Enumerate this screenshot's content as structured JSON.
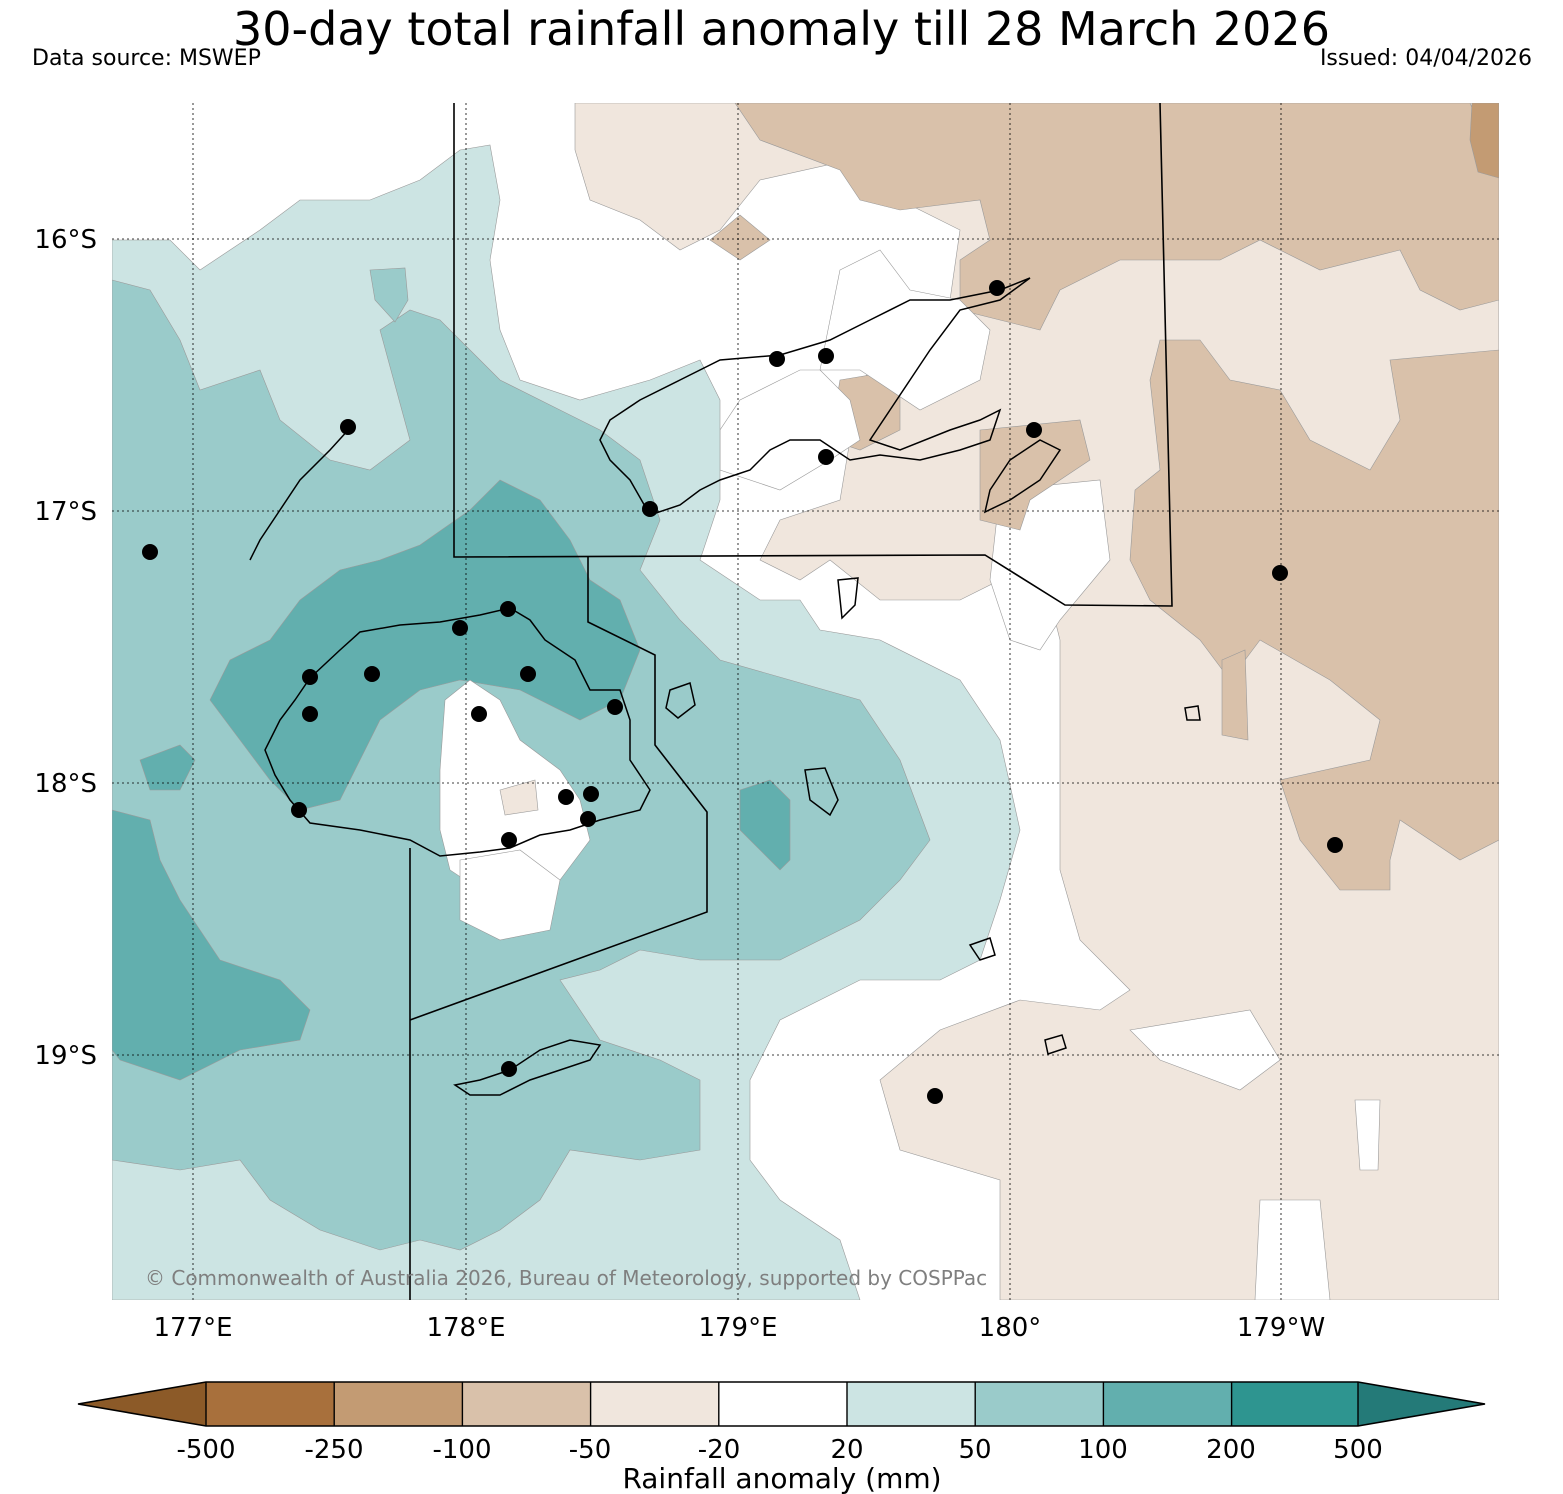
{
  "header": {
    "title": "30-day total rainfall anomaly till 28 March 2026",
    "data_source": "Data source: MSWEP",
    "issued": "Issued: 04/04/2026"
  },
  "map": {
    "lon_labels": [
      "177°E",
      "178°E",
      "179°E",
      "180°",
      "179°W"
    ],
    "lat_labels": [
      "16°S",
      "17°S",
      "18°S",
      "19°S"
    ],
    "copyright": "© Commonwealth of Australia 2026, Bureau of Meteorology, supported by COSPPac"
  },
  "colorbar": {
    "title": "Rainfall anomaly (mm)",
    "tick_labels": [
      "-500",
      "-250",
      "-100",
      "-50",
      "-20",
      "20",
      "50",
      "100",
      "200",
      "500"
    ],
    "low_extend_color": "#8c5a28",
    "high_extend_color": "#247a78",
    "bins": [
      {
        "range": "-500 to -250",
        "color": "#a8703c"
      },
      {
        "range": "-250 to -100",
        "color": "#c39b73"
      },
      {
        "range": "-100 to -50",
        "color": "#d9c1aa"
      },
      {
        "range": "-50 to -20",
        "color": "#f0e6dd"
      },
      {
        "range": "-20 to 20",
        "color": "#ffffff"
      },
      {
        "range": "20 to 50",
        "color": "#cce4e3"
      },
      {
        "range": "50 to 100",
        "color": "#9acbca"
      },
      {
        "range": "100 to 200",
        "color": "#62afae"
      },
      {
        "range": "200 to 500",
        "color": "#2e9590"
      }
    ]
  }
}
